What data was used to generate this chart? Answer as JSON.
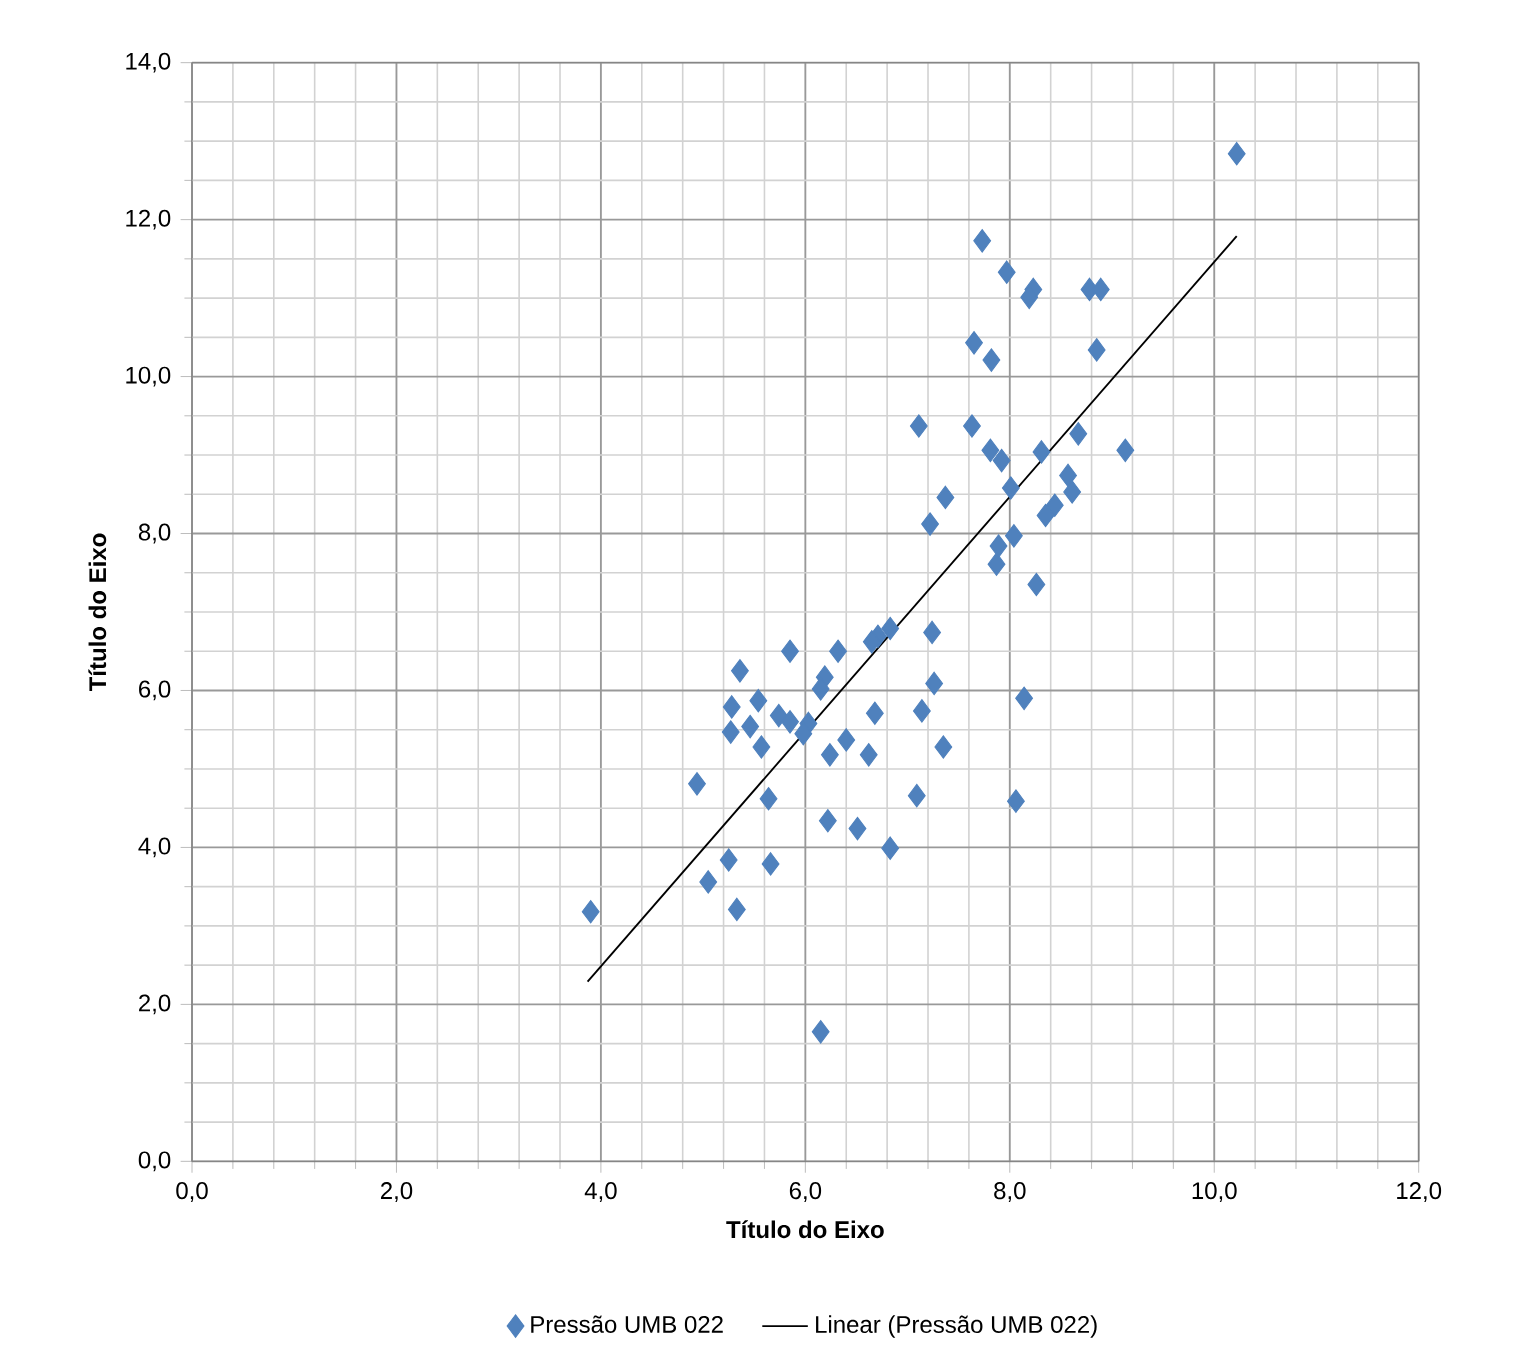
{
  "chart_data": {
    "type": "scatter",
    "xlabel": "Título do Eixo",
    "ylabel": "Título do Eixo",
    "xlim": [
      0,
      12
    ],
    "ylim": [
      0,
      14
    ],
    "xticks": [
      {
        "value": 0,
        "label": "0,0"
      },
      {
        "value": 2,
        "label": "2,0"
      },
      {
        "value": 4,
        "label": "4,0"
      },
      {
        "value": 6,
        "label": "6,0"
      },
      {
        "value": 8,
        "label": "8,0"
      },
      {
        "value": 10,
        "label": "10,0"
      },
      {
        "value": 12,
        "label": "12,0"
      }
    ],
    "yticks": [
      {
        "value": 0,
        "label": "0,0"
      },
      {
        "value": 2,
        "label": "2,0"
      },
      {
        "value": 4,
        "label": "4,0"
      },
      {
        "value": 6,
        "label": "6,0"
      },
      {
        "value": 8,
        "label": "8,0"
      },
      {
        "value": 10,
        "label": "10,0"
      },
      {
        "value": 12,
        "label": "12,0"
      },
      {
        "value": 14,
        "label": "14,0"
      }
    ],
    "grid": true,
    "legend": "bottom",
    "marker": "diamond",
    "series": [
      {
        "name": "Pressão UMB 022",
        "color": "#4f81bd",
        "x": [
          10.22,
          7.73,
          7.97,
          8.23,
          8.19,
          8.78,
          8.89,
          7.65,
          7.82,
          8.85,
          7.11,
          7.63,
          8.67,
          9.13,
          7.81,
          7.92,
          8.31,
          8.57,
          8.61,
          8.01,
          7.37,
          7.22,
          8.44,
          8.35,
          8.04,
          7.89,
          7.87,
          8.26,
          7.24,
          6.83,
          6.71,
          6.65,
          5.85,
          6.32,
          5.36,
          7.26,
          6.19,
          6.15,
          5.28,
          5.54,
          8.14,
          6.68,
          7.14,
          5.74,
          5.85,
          6.03,
          5.98,
          5.27,
          5.46,
          6.4,
          5.57,
          6.24,
          6.62,
          7.35,
          4.94,
          5.64,
          7.09,
          8.06,
          6.22,
          6.51,
          6.83,
          5.25,
          5.66,
          5.05,
          3.9,
          5.33,
          6.15
        ],
        "values": [
          12.84,
          11.73,
          11.33,
          11.11,
          11.01,
          11.11,
          11.11,
          10.43,
          10.21,
          10.34,
          9.37,
          9.37,
          9.27,
          9.06,
          9.06,
          8.93,
          9.04,
          8.74,
          8.53,
          8.58,
          8.46,
          8.12,
          8.36,
          8.23,
          7.97,
          7.84,
          7.61,
          7.35,
          6.74,
          6.79,
          6.69,
          6.62,
          6.5,
          6.5,
          6.25,
          6.09,
          6.17,
          6.02,
          5.79,
          5.87,
          5.9,
          5.71,
          5.74,
          5.68,
          5.6,
          5.58,
          5.45,
          5.47,
          5.54,
          5.37,
          5.28,
          5.18,
          5.18,
          5.28,
          4.81,
          4.62,
          4.66,
          4.59,
          4.34,
          4.24,
          3.99,
          3.84,
          3.79,
          3.56,
          3.18,
          3.21,
          1.65
        ]
      },
      {
        "name": "Linear (Pressão UMB 022)",
        "type": "line",
        "color": "#000000",
        "marker": "none",
        "line_style": "solid",
        "x": [
          3.87,
          10.22
        ],
        "values": [
          2.29,
          11.79
        ]
      }
    ]
  }
}
